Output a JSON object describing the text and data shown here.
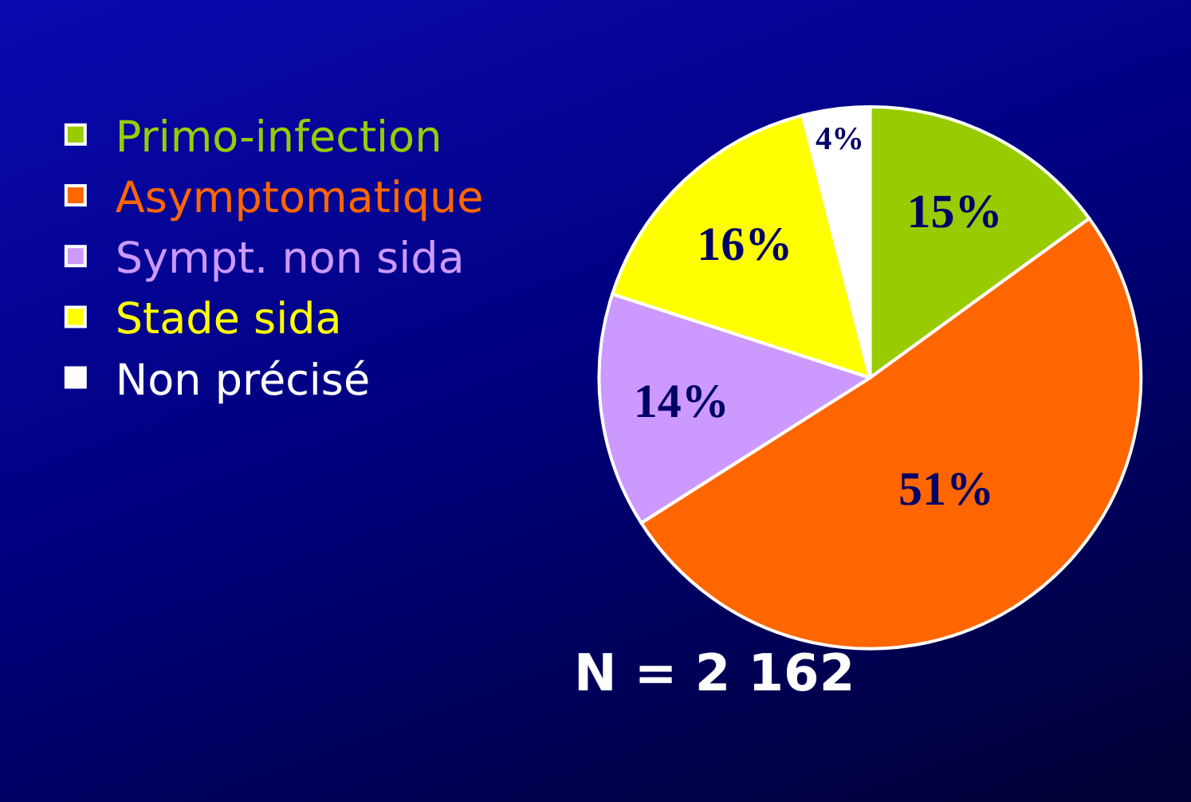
{
  "chart_data": {
    "type": "pie",
    "categories": [
      "Primo-infection",
      "Asymptomatique",
      "Sympt. non sida",
      "Stade sida",
      "Non précisé"
    ],
    "values": [
      15,
      51,
      14,
      16,
      4
    ],
    "colors": [
      "#99cc00",
      "#ff6600",
      "#cc99ff",
      "#ffff00",
      "#ffffff"
    ],
    "value_labels": [
      "15%",
      "51%",
      "14%",
      "16%",
      "4%"
    ],
    "legend": "left",
    "annotations": [
      "N = 2 162"
    ]
  }
}
